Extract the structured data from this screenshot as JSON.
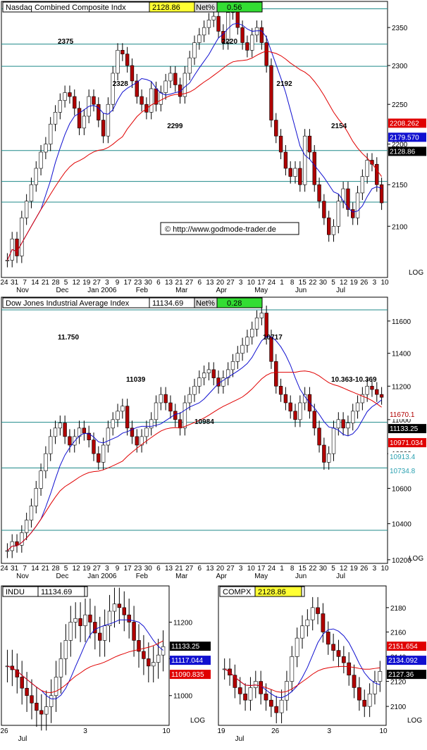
{
  "colors": {
    "grid": "#1f8a8a",
    "red": "#e00000",
    "darkred": "#b00000",
    "blue": "#1010d0",
    "teal": "#2aa0b0",
    "yellow": "#ffff33",
    "green": "#33dd33",
    "border": "#000000"
  },
  "log_label": "LOG",
  "watermark": "© http://www.godmode-trader.de",
  "chart_data": [
    {
      "type": "candlestick",
      "title": "Nasdaq Combined Composite Indx",
      "last_value": "2128.86",
      "change_label": "Net%",
      "change_value": "0.56",
      "ylim": [
        2040,
        2385
      ],
      "y_ticks": [
        2100,
        2150,
        2200,
        2250,
        2300,
        2350
      ],
      "x_ticks": [
        "24",
        "31",
        "7",
        "14",
        "21",
        "28",
        "5",
        "12",
        "19",
        "27",
        "3",
        "9",
        "17",
        "23",
        "30",
        "6",
        "13",
        "21",
        "27",
        "6",
        "13",
        "20",
        "27",
        "3",
        "10",
        "17",
        "24",
        "1",
        "8",
        "15",
        "22",
        "30",
        "5",
        "12",
        "19",
        "26",
        "3",
        "10"
      ],
      "month_labels": [
        "Nov",
        "Dec",
        "Jan 2006",
        "Feb",
        "Mar",
        "Apr",
        "May",
        "Jun",
        "Jul"
      ],
      "horizontal_levels": [
        2128.86,
        2154,
        2192,
        2299,
        2328,
        2375
      ],
      "annotations": [
        "2375",
        "2328",
        "2299",
        "2220",
        "2192",
        "2154"
      ],
      "price_badges": [
        {
          "label": "2208.262",
          "color": "red"
        },
        {
          "label": "2179.570",
          "color": "blue"
        },
        {
          "label": "2128.86",
          "color": "black"
        }
      ],
      "closes": [
        2060,
        2085,
        2065,
        2110,
        2130,
        2150,
        2170,
        2190,
        2200,
        2225,
        2240,
        2255,
        2265,
        2260,
        2245,
        2220,
        2235,
        2260,
        2250,
        2230,
        2210,
        2250,
        2290,
        2320,
        2315,
        2300,
        2280,
        2260,
        2250,
        2240,
        2270,
        2250,
        2265,
        2280,
        2290,
        2275,
        2260,
        2290,
        2310,
        2330,
        2340,
        2350,
        2360,
        2365,
        2345,
        2330,
        2370,
        2375,
        2350,
        2330,
        2320,
        2340,
        2350,
        2330,
        2300,
        2230,
        2210,
        2190,
        2170,
        2160,
        2170,
        2150,
        2210,
        2190,
        2150,
        2130,
        2110,
        2090,
        2100,
        2130,
        2145,
        2120,
        2110,
        2140,
        2160,
        2180,
        2175,
        2150,
        2128
      ]
    },
    {
      "type": "candlestick",
      "title": "Dow Jones Industrial Average Index",
      "last_value": "11134.69",
      "change_label": "Net%",
      "change_value": "0.28",
      "ylim": [
        10180,
        11750
      ],
      "y_ticks": [
        10200,
        10400,
        10600,
        10800,
        11000,
        11200,
        11400,
        11600
      ],
      "x_ticks": [
        "24",
        "31",
        "7",
        "14",
        "21",
        "28",
        "5",
        "12",
        "19",
        "27",
        "3",
        "9",
        "17",
        "23",
        "30",
        "6",
        "13",
        "21",
        "27",
        "6",
        "13",
        "20",
        "27",
        "3",
        "10",
        "17",
        "24",
        "1",
        "8",
        "15",
        "22",
        "30",
        "5",
        "12",
        "19",
        "26",
        "3",
        "10"
      ],
      "month_labels": [
        "Nov",
        "Dec",
        "Jan 2006",
        "Feb",
        "Mar",
        "Apr",
        "May",
        "Jun",
        "Jul"
      ],
      "horizontal_levels": [
        11670.1,
        10984,
        10717,
        10363
      ],
      "annotations": [
        "11.750",
        "11039",
        "10984",
        "10717",
        "10.363-10.369"
      ],
      "price_badges": [
        {
          "label": "11670.1",
          "color": "red-text"
        },
        {
          "label": "11133.25",
          "color": "black"
        },
        {
          "label": "10971.034",
          "color": "red"
        },
        {
          "label": "10913.4",
          "color": "teal-text"
        },
        {
          "label": "10734.8",
          "color": "teal-text"
        }
      ],
      "closes": [
        10250,
        10300,
        10280,
        10350,
        10420,
        10500,
        10600,
        10700,
        10800,
        10900,
        10950,
        10980,
        10900,
        10850,
        10900,
        10950,
        10920,
        10880,
        10800,
        10750,
        10850,
        10950,
        11000,
        11050,
        11080,
        10950,
        10900,
        10850,
        10900,
        10950,
        11000,
        11100,
        11150,
        11100,
        11050,
        11000,
        10950,
        11100,
        11150,
        11200,
        11250,
        11280,
        11300,
        11250,
        11200,
        11250,
        11300,
        11350,
        11400,
        11450,
        11500,
        11550,
        11620,
        11650,
        11500,
        11350,
        11200,
        11150,
        11100,
        11050,
        11000,
        11100,
        11150,
        11050,
        10950,
        10850,
        10750,
        10800,
        10950,
        11000,
        10950,
        10980,
        11050,
        11100,
        11150,
        11200,
        11180,
        11150,
        11133
      ]
    },
    {
      "type": "candlestick",
      "title": "INDU",
      "last_value": "11134.69",
      "ylim": [
        10920,
        11300
      ],
      "y_ticks": [
        11000,
        11100,
        11200
      ],
      "x_ticks": [
        "26",
        "3",
        "10"
      ],
      "month_labels": [
        "Jul"
      ],
      "price_badges": [
        {
          "label": "11133.25",
          "color": "black"
        },
        {
          "label": "11117.044",
          "color": "blue"
        },
        {
          "label": "11090.835",
          "color": "red"
        }
      ],
      "closes": [
        11080,
        11070,
        11050,
        11020,
        11000,
        10980,
        10960,
        10950,
        10970,
        11000,
        11050,
        11100,
        11150,
        11200,
        11210,
        11190,
        11220,
        11200,
        11170,
        11150,
        11190,
        11230,
        11250,
        11240,
        11220,
        11200,
        11150,
        11120,
        11100,
        11080,
        11090,
        11110,
        11133
      ]
    },
    {
      "type": "candlestick",
      "title": "COMPX",
      "last_value": "2128.86",
      "ylim": [
        2085,
        2198
      ],
      "y_ticks": [
        2100,
        2120,
        2140,
        2160,
        2180
      ],
      "x_ticks": [
        "19",
        "26",
        "3",
        "10"
      ],
      "month_labels": [
        "Jul"
      ],
      "price_badges": [
        {
          "label": "2151.654",
          "color": "red"
        },
        {
          "label": "2134.092",
          "color": "blue"
        },
        {
          "label": "2127.36",
          "color": "black"
        }
      ],
      "closes": [
        2130,
        2125,
        2115,
        2110,
        2105,
        2115,
        2120,
        2110,
        2105,
        2100,
        2095,
        2105,
        2120,
        2140,
        2155,
        2165,
        2170,
        2180,
        2175,
        2160,
        2150,
        2145,
        2140,
        2135,
        2125,
        2115,
        2105,
        2100,
        2110,
        2120,
        2128
      ]
    }
  ]
}
